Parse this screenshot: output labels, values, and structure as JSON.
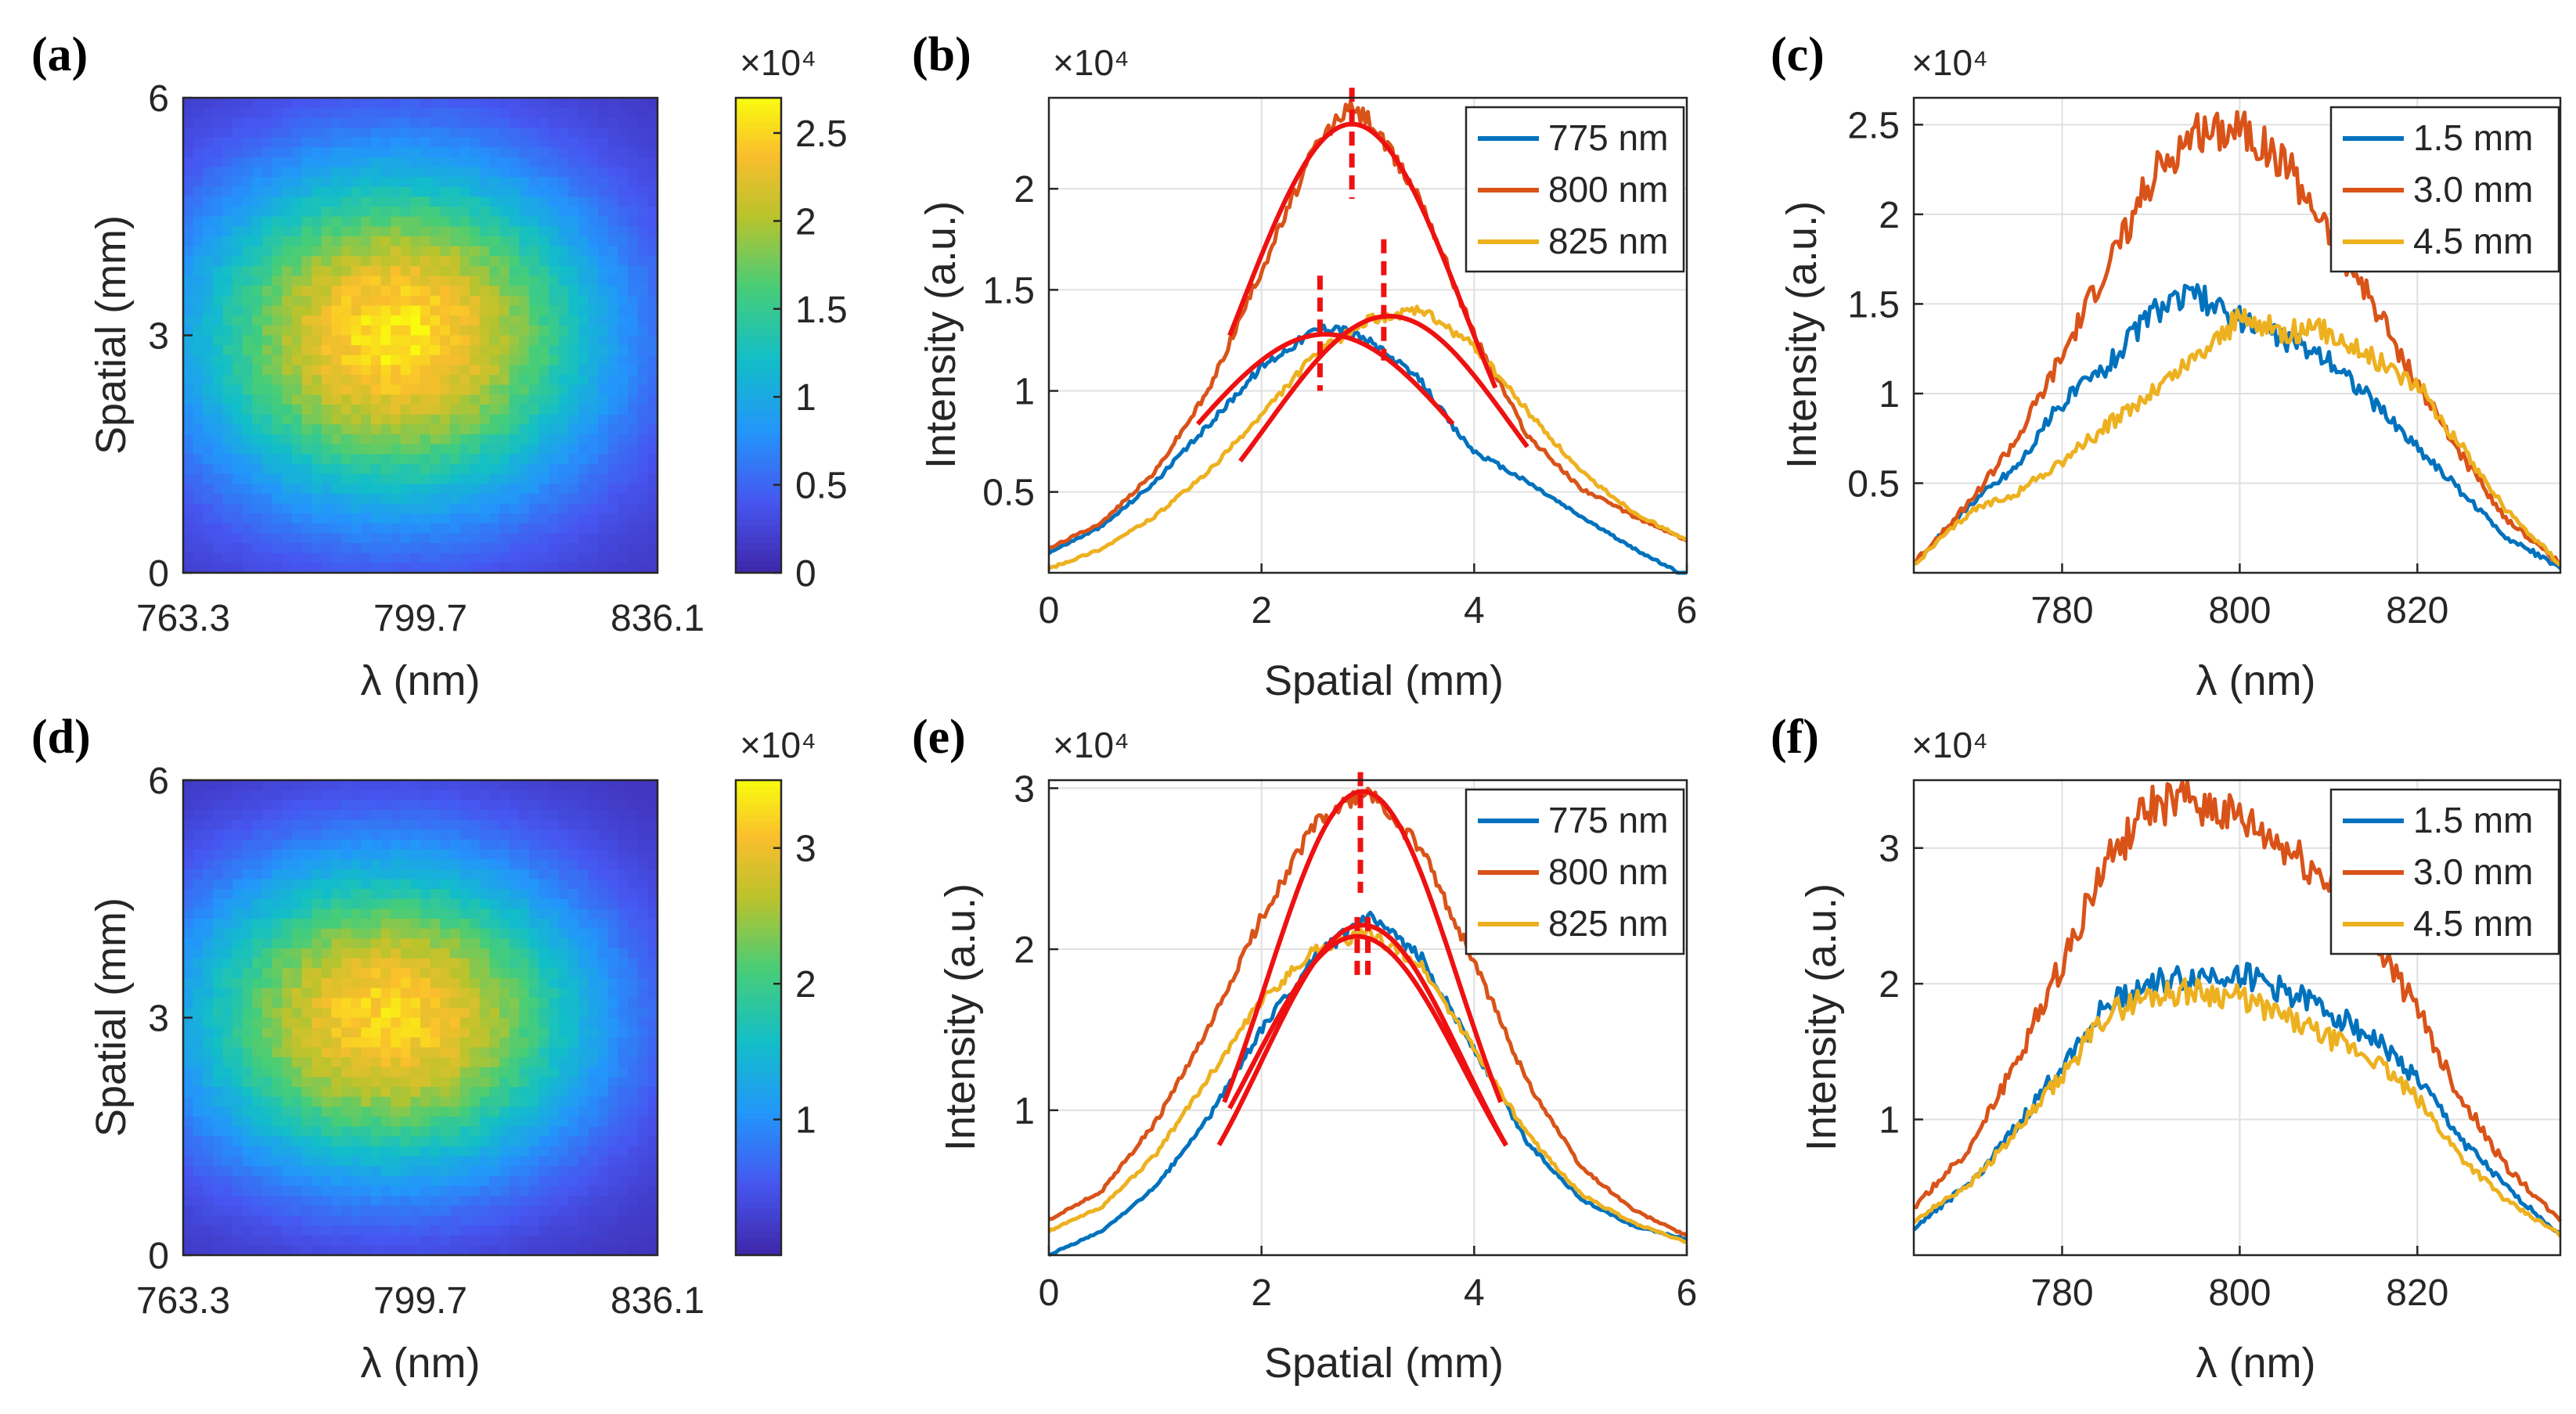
{
  "chart_data": [
    {
      "id": "a",
      "type": "heatmap",
      "panel_label": "(a)",
      "xlabel": "λ (nm)",
      "ylabel": "Spatial (mm)",
      "x_tick_labels": [
        "763.3",
        "799.7",
        "836.1"
      ],
      "x_range": [
        763.3,
        836.1
      ],
      "y_range": [
        0,
        6
      ],
      "y_ticks": [
        0,
        3,
        6
      ],
      "colorbar": {
        "multiplier": "×10⁴",
        "range": [
          0,
          2.7
        ],
        "ticks": [
          0,
          0.5,
          1,
          1.5,
          2,
          2.5
        ]
      },
      "intensity_model": {
        "peak": 2.5,
        "peak_wavelength": 796,
        "peak_spatial": 3.0,
        "width_wavelength": 22,
        "width_spatial": 1.5,
        "base": 0.1
      }
    },
    {
      "id": "b",
      "type": "line",
      "panel_label": "(b)",
      "xlabel": "Spatial (mm)",
      "ylabel": "Intensity (a.u.)",
      "multiplier": "×10⁴",
      "xlim": [
        0,
        6
      ],
      "ylim": [
        0.1,
        2.45
      ],
      "x_ticks": [
        0,
        2,
        4,
        6
      ],
      "y_ticks": [
        0.5,
        1,
        1.5,
        2
      ],
      "series": [
        {
          "name": "775 nm",
          "color": "#0072bd",
          "x": [
            0,
            0.5,
            1,
            1.5,
            2,
            2.5,
            2.7,
            3,
            3.5,
            3.8,
            4,
            4.5,
            5,
            5.5,
            6
          ],
          "y": [
            0.2,
            0.33,
            0.55,
            0.83,
            1.12,
            1.3,
            1.32,
            1.25,
            1.05,
            0.82,
            0.7,
            0.55,
            0.38,
            0.22,
            0.08
          ]
        },
        {
          "name": "800 nm",
          "color": "#d95319",
          "x": [
            0,
            0.5,
            1,
            1.5,
            2,
            2.5,
            2.8,
            3,
            3.5,
            4,
            4.5,
            5,
            5.5,
            6
          ],
          "y": [
            0.22,
            0.35,
            0.6,
            1.0,
            1.6,
            2.2,
            2.4,
            2.35,
            1.95,
            1.28,
            0.78,
            0.52,
            0.38,
            0.26
          ]
        },
        {
          "name": "825 nm",
          "color": "#edb120",
          "x": [
            0,
            0.5,
            1,
            1.5,
            2,
            2.5,
            3,
            3.5,
            4,
            4.5,
            5,
            5.5,
            6
          ],
          "y": [
            0.12,
            0.22,
            0.38,
            0.6,
            0.88,
            1.18,
            1.35,
            1.4,
            1.22,
            0.9,
            0.6,
            0.4,
            0.26
          ]
        }
      ],
      "fits": [
        {
          "peak": 2.32,
          "center": 2.85,
          "sigma": 1.05,
          "x_from": 1.7,
          "x_to": 4.2
        },
        {
          "peak": 1.28,
          "center": 2.6,
          "sigma": 1.3,
          "x_from": 1.4,
          "x_to": 3.8
        },
        {
          "peak": 1.37,
          "center": 3.2,
          "sigma": 1.15,
          "x_from": 1.8,
          "x_to": 4.5
        }
      ],
      "markers": [
        {
          "x": 2.85,
          "y_from": 1.95,
          "y_to": 2.5
        },
        {
          "x": 2.55,
          "y_from": 1.0,
          "y_to": 1.57
        },
        {
          "x": 3.15,
          "y_from": 1.15,
          "y_to": 1.75
        }
      ],
      "legend": "top-right"
    },
    {
      "id": "c",
      "type": "line",
      "panel_label": "(c)",
      "xlabel": "λ (nm)",
      "ylabel": "Intensity (a.u.)",
      "multiplier": "×10⁴",
      "xlim": [
        763.3,
        836.1
      ],
      "ylim": [
        0.0,
        2.65
      ],
      "x_ticks": [
        780,
        800,
        820
      ],
      "y_ticks": [
        0.5,
        1,
        1.5,
        2,
        2.5
      ],
      "series": [
        {
          "name": "1.5 mm",
          "color": "#0072bd",
          "x": [
            763.3,
            770,
            775,
            780,
            785,
            790,
            795,
            800,
            805,
            810,
            815,
            820,
            825,
            830,
            836.1
          ],
          "y": [
            0.05,
            0.4,
            0.6,
            0.95,
            1.15,
            1.45,
            1.55,
            1.42,
            1.3,
            1.2,
            0.95,
            0.7,
            0.45,
            0.2,
            0.03
          ]
        },
        {
          "name": "3.0 mm",
          "color": "#d95319",
          "x": [
            763.3,
            770,
            775,
            780,
            785,
            790,
            795,
            800,
            805,
            810,
            815,
            820,
            825,
            830,
            836.1
          ],
          "y": [
            0.05,
            0.42,
            0.75,
            1.2,
            1.7,
            2.2,
            2.45,
            2.5,
            2.3,
            1.9,
            1.5,
            1.05,
            0.65,
            0.3,
            0.05
          ]
        },
        {
          "name": "4.5 mm",
          "color": "#edb120",
          "x": [
            763.3,
            770,
            775,
            780,
            785,
            790,
            795,
            800,
            805,
            810,
            815,
            820,
            825,
            830,
            836.1
          ],
          "y": [
            0.05,
            0.35,
            0.45,
            0.62,
            0.82,
            1.0,
            1.2,
            1.42,
            1.35,
            1.35,
            1.2,
            1.05,
            0.7,
            0.35,
            0.05
          ]
        }
      ],
      "legend": "top-right"
    },
    {
      "id": "d",
      "type": "heatmap",
      "panel_label": "(d)",
      "xlabel": "λ (nm)",
      "ylabel": "Spatial (mm)",
      "x_tick_labels": [
        "763.3",
        "799.7",
        "836.1"
      ],
      "x_range": [
        763.3,
        836.1
      ],
      "y_range": [
        0,
        6
      ],
      "y_ticks": [
        0,
        3,
        6
      ],
      "colorbar": {
        "multiplier": "×10⁴",
        "range": [
          0,
          3.5
        ],
        "ticks": [
          1,
          2,
          3
        ]
      },
      "intensity_model": {
        "peak": 3.15,
        "peak_wavelength": 795,
        "peak_spatial": 3.0,
        "width_wavelength": 22,
        "width_spatial": 1.4,
        "base": 0.1
      }
    },
    {
      "id": "e",
      "type": "line",
      "panel_label": "(e)",
      "xlabel": "Spatial (mm)",
      "ylabel": "Intensity (a.u.)",
      "multiplier": "×10⁴",
      "xlim": [
        0,
        6
      ],
      "ylim": [
        0.1,
        3.05
      ],
      "x_ticks": [
        0,
        2,
        4,
        6
      ],
      "y_ticks": [
        1,
        2,
        3
      ],
      "series": [
        {
          "name": "775 nm",
          "color": "#0072bd",
          "x": [
            0,
            0.5,
            1,
            1.5,
            2,
            2.5,
            3,
            3.5,
            4,
            4.5,
            5,
            5.5,
            6
          ],
          "y": [
            0.1,
            0.25,
            0.52,
            0.95,
            1.5,
            1.95,
            2.2,
            1.95,
            1.38,
            0.8,
            0.45,
            0.28,
            0.2
          ]
        },
        {
          "name": "800 nm",
          "color": "#d95319",
          "x": [
            0,
            0.5,
            1,
            1.5,
            2,
            2.5,
            3,
            3.5,
            4,
            4.5,
            5,
            5.5,
            6
          ],
          "y": [
            0.32,
            0.5,
            0.92,
            1.5,
            2.2,
            2.78,
            2.98,
            2.62,
            1.92,
            1.18,
            0.65,
            0.38,
            0.22
          ]
        },
        {
          "name": "825 nm",
          "color": "#edb120",
          "x": [
            0,
            0.5,
            1,
            1.5,
            2,
            2.5,
            3,
            3.5,
            4,
            4.5,
            5,
            5.5,
            6
          ],
          "y": [
            0.25,
            0.4,
            0.72,
            1.2,
            1.68,
            2.0,
            2.1,
            1.9,
            1.38,
            0.85,
            0.48,
            0.3,
            0.18
          ]
        }
      ],
      "fits": [
        {
          "peak": 2.98,
          "center": 2.95,
          "sigma": 0.9,
          "x_from": 1.65,
          "x_to": 4.25
        },
        {
          "peak": 2.15,
          "center": 2.95,
          "sigma": 0.95,
          "x_from": 1.6,
          "x_to": 4.3
        },
        {
          "peak": 2.08,
          "center": 2.9,
          "sigma": 1.0,
          "x_from": 1.7,
          "x_to": 4.3
        }
      ],
      "markers": [
        {
          "x": 2.93,
          "y_from": 2.35,
          "y_to": 3.1
        },
        {
          "x": 2.9,
          "y_from": 1.8,
          "y_to": 2.2
        },
        {
          "x": 3.0,
          "y_from": 1.8,
          "y_to": 2.2
        }
      ],
      "legend": "top-right"
    },
    {
      "id": "f",
      "type": "line",
      "panel_label": "(f)",
      "xlabel": "λ (nm)",
      "ylabel": "Intensity (a.u.)",
      "multiplier": "×10⁴",
      "xlim": [
        763.3,
        836.1
      ],
      "ylim": [
        0.0,
        3.5
      ],
      "x_ticks": [
        780,
        800,
        820
      ],
      "y_ticks": [
        1,
        2,
        3
      ],
      "series": [
        {
          "name": "1.5 mm",
          "color": "#0072bd",
          "x": [
            763.3,
            770,
            775,
            780,
            785,
            790,
            795,
            800,
            805,
            810,
            815,
            820,
            825,
            830,
            836.1
          ],
          "y": [
            0.2,
            0.55,
            0.95,
            1.4,
            1.85,
            2.0,
            2.05,
            2.08,
            1.95,
            1.8,
            1.6,
            1.3,
            0.85,
            0.5,
            0.15
          ]
        },
        {
          "name": "3.0 mm",
          "color": "#d95319",
          "x": [
            763.3,
            770,
            775,
            780,
            785,
            790,
            795,
            800,
            805,
            810,
            815,
            820,
            825,
            830,
            836.1
          ],
          "y": [
            0.35,
            0.82,
            1.45,
            2.15,
            2.9,
            3.3,
            3.35,
            3.2,
            3.0,
            2.75,
            2.35,
            1.8,
            1.15,
            0.65,
            0.25
          ]
        },
        {
          "name": "4.5 mm",
          "color": "#edb120",
          "x": [
            763.3,
            770,
            775,
            780,
            785,
            790,
            795,
            800,
            805,
            810,
            815,
            820,
            825,
            830,
            836.1
          ],
          "y": [
            0.25,
            0.55,
            0.92,
            1.32,
            1.78,
            1.92,
            1.95,
            1.9,
            1.75,
            1.6,
            1.45,
            1.15,
            0.72,
            0.4,
            0.15
          ]
        }
      ],
      "legend": "top-right"
    }
  ]
}
